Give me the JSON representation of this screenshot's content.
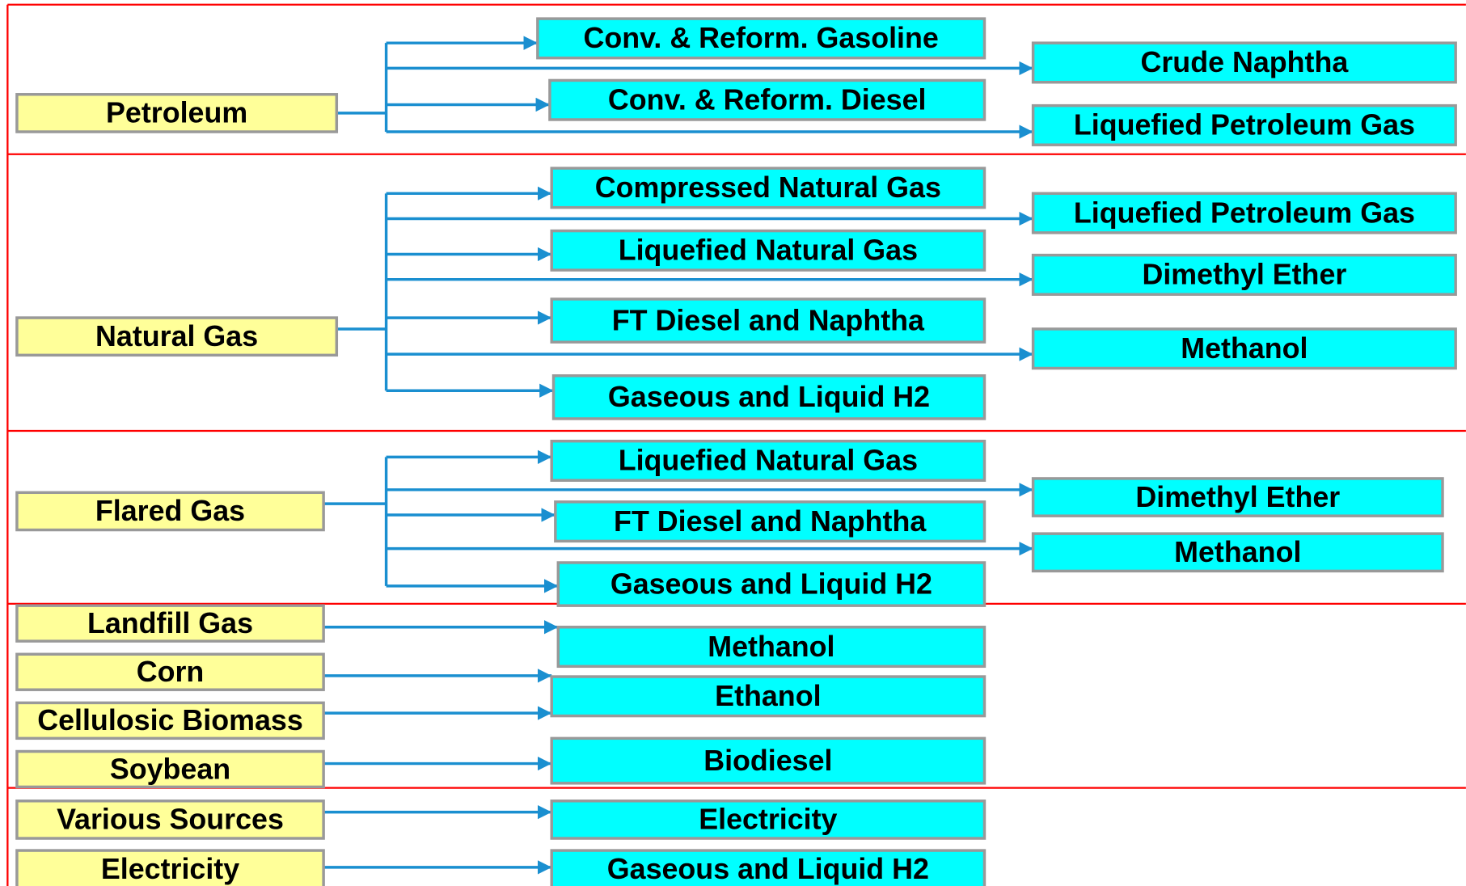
{
  "sources": [
    "Petroleum",
    "Natural Gas",
    "Flared Gas",
    "Landfill Gas",
    "Corn",
    "Cellulosic Biomass",
    "Soybean",
    "Various Sources",
    "Electricity"
  ],
  "products": [
    "Conv. & Reform. Gasoline",
    "Crude Naphtha",
    "Conv. & Reform. Diesel",
    "Liquefied Petroleum Gas",
    "Compressed Natural Gas",
    "Liquefied Petroleum Gas",
    "Liquefied Natural Gas",
    "Dimethyl Ether",
    "FT Diesel and Naphtha",
    "Methanol",
    "Gaseous and Liquid H2",
    "Liquefied Natural Gas",
    "Dimethyl Ether",
    "FT Diesel and Naphtha",
    "Methanol",
    "Gaseous and Liquid H2",
    "Methanol",
    "Ethanol",
    "Biodiesel",
    "Electricity",
    "Gaseous and Liquid H2"
  ]
}
